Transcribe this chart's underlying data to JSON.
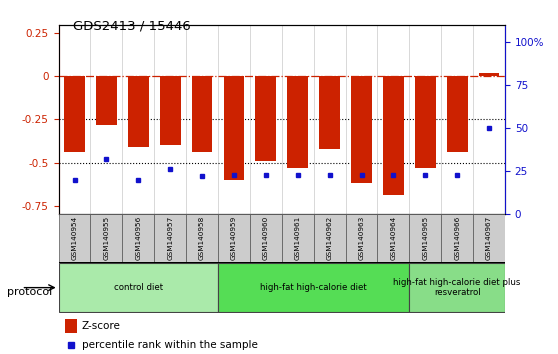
{
  "title": "GDS2413 / 15446",
  "samples": [
    "GSM140954",
    "GSM140955",
    "GSM140956",
    "GSM140957",
    "GSM140958",
    "GSM140959",
    "GSM140960",
    "GSM140961",
    "GSM140962",
    "GSM140963",
    "GSM140964",
    "GSM140965",
    "GSM140966",
    "GSM140967"
  ],
  "z_scores": [
    -0.44,
    -0.28,
    -0.41,
    -0.4,
    -0.44,
    -0.6,
    -0.49,
    -0.53,
    -0.42,
    -0.62,
    -0.69,
    -0.53,
    -0.44,
    0.02
  ],
  "pct_rank_values": [
    20,
    32,
    20,
    26,
    22,
    23,
    23,
    23,
    23,
    23,
    23,
    23,
    23,
    50
  ],
  "bar_color": "#CC2200",
  "dot_color": "#1111CC",
  "ylim_left": [
    -0.8,
    0.3
  ],
  "ylim_right": [
    0,
    110
  ],
  "yticks_left": [
    -0.75,
    -0.5,
    -0.25,
    0,
    0.25
  ],
  "yticks_right": [
    0,
    25,
    50,
    75,
    100
  ],
  "ytick_labels_left": [
    "-0.75",
    "-0.5",
    "-0.25",
    "0",
    "0.25"
  ],
  "ytick_labels_right": [
    "0",
    "25",
    "50",
    "75",
    "100%"
  ],
  "dotted_lines": [
    -0.25,
    -0.5
  ],
  "groups": [
    {
      "label": "control diet",
      "start": 0,
      "end": 5,
      "color": "#AAEAAA"
    },
    {
      "label": "high-fat high-calorie diet",
      "start": 5,
      "end": 11,
      "color": "#55DD55"
    },
    {
      "label": "high-fat high-calorie diet plus\nresveratrol",
      "start": 11,
      "end": 14,
      "color": "#88DD88"
    }
  ],
  "legend_zscore_label": "Z-score",
  "legend_pct_label": "percentile rank within the sample",
  "xlabel_protocol": "protocol"
}
